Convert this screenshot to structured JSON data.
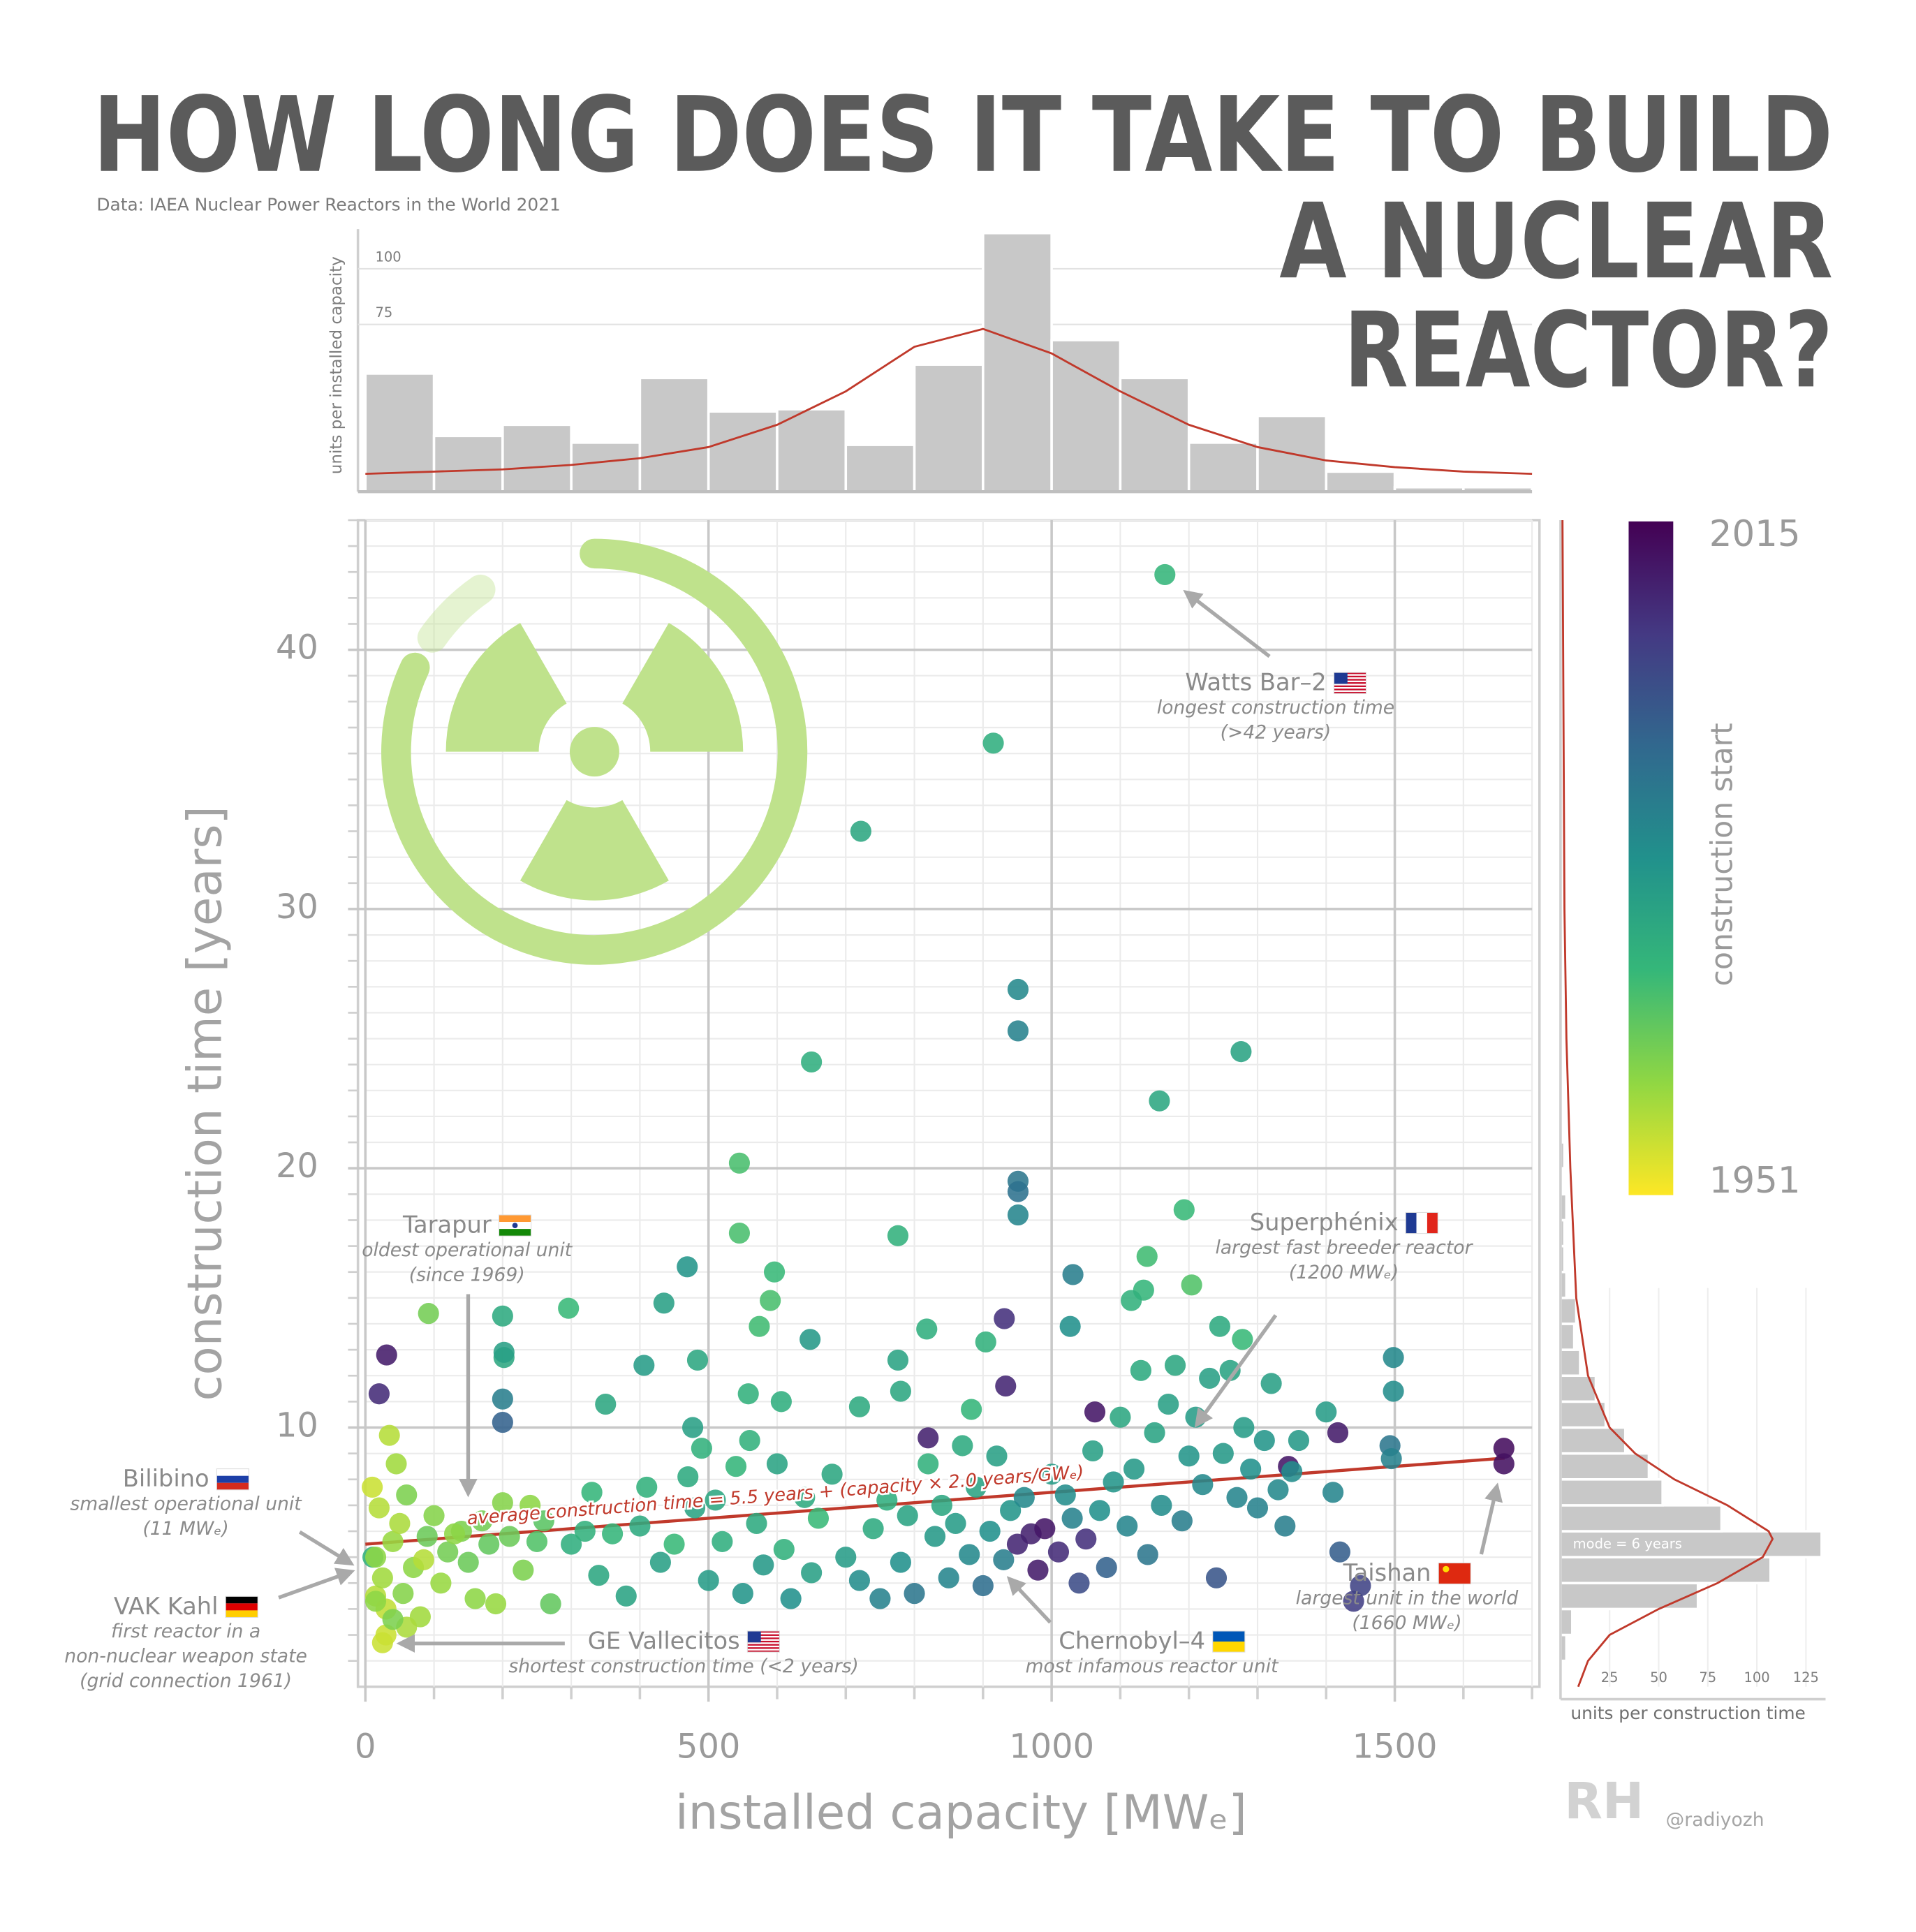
{
  "title": [
    "HOW LONG DOES IT TAKE TO BUILD",
    "A NUCLEAR",
    "REACTOR?"
  ],
  "source": "Data: IAEA Nuclear Power Reactors in the World 2021",
  "credit": "@radiyozh",
  "chart_data": [
    {
      "type": "scatter",
      "x_label": "installed capacity [MWₑ]",
      "y_label": "construction time [years]",
      "xlim": [
        0,
        1700
      ],
      "ylim": [
        0,
        45
      ],
      "xticks": [
        0,
        500,
        1000,
        1500
      ],
      "yticks": [
        10,
        20,
        30,
        40
      ],
      "xminorticks": [
        100,
        200,
        300,
        400,
        600,
        700,
        800,
        900,
        1100,
        1200,
        1300,
        1400,
        1600,
        1700
      ],
      "yminorticks": [
        1,
        2,
        3,
        4,
        5,
        6,
        7,
        8,
        9,
        11,
        12,
        13,
        14,
        15,
        16,
        17,
        18,
        19,
        21,
        22,
        23,
        24,
        25,
        26,
        27,
        28,
        29,
        31,
        32,
        33,
        34,
        35,
        36,
        37,
        38,
        39,
        41,
        42,
        43,
        44,
        45
      ],
      "grid": true,
      "series": [
        {
          "x": [
            1165,
            915,
            722,
            951,
            951,
            650,
            1276,
            1157,
            545,
            951,
            951,
            951,
            1193,
            545,
            776,
            469,
            596,
            1031,
            1139,
            1204,
            1134,
            1116,
            296,
            92,
            200,
            590,
            574,
            435,
            931,
            1027,
            818,
            648,
            904,
            1245,
            1278,
            31,
            202,
            202,
            484,
            406,
            776,
            1498,
            933,
            20,
            1498,
            200,
            558,
            606,
            883,
            1063,
            200,
            477,
            820,
            1417,
            1493,
            1495,
            1659,
            1659,
            1345,
            25,
            11,
            15,
            10,
            20,
            15,
            25,
            30,
            40,
            50,
            55,
            60,
            70,
            80,
            90,
            100,
            110,
            120,
            140,
            150,
            160,
            170,
            180,
            200,
            210,
            230,
            240,
            260,
            270,
            35,
            45,
            30,
            60,
            85,
            130,
            190,
            250,
            15,
            40,
            300,
            320,
            340,
            360,
            380,
            400,
            410,
            430,
            450,
            470,
            480,
            490,
            500,
            510,
            520,
            540,
            550,
            570,
            580,
            600,
            610,
            620,
            640,
            650,
            660,
            680,
            700,
            720,
            740,
            750,
            760,
            780,
            790,
            800,
            820,
            830,
            840,
            850,
            860,
            870,
            880,
            890,
            900,
            910,
            920,
            930,
            940,
            950,
            960,
            970,
            980,
            990,
            1000,
            1010,
            1020,
            1030,
            1040,
            1050,
            1060,
            1070,
            1080,
            1090,
            1100,
            1110,
            1120,
            1130,
            1140,
            1150,
            1160,
            1170,
            1180,
            1190,
            1200,
            1210,
            1220,
            1230,
            1240,
            1250,
            1260,
            1270,
            1280,
            1290,
            1300,
            1310,
            1320,
            1330,
            1340,
            1350,
            1360,
            1400,
            1410,
            1420,
            1440,
            1450,
            350,
            330,
            560,
            720,
            780
          ],
          "values": [
            42.9,
            36.4,
            33,
            26.9,
            25.3,
            24.1,
            24.5,
            22.6,
            20.2,
            19.5,
            19.1,
            18.2,
            18.4,
            17.5,
            17.4,
            16.2,
            16.0,
            15.9,
            16.6,
            15.5,
            15.3,
            14.9,
            14.6,
            14.4,
            14.3,
            14.9,
            13.9,
            14.8,
            14.2,
            13.9,
            13.8,
            13.4,
            13.3,
            13.9,
            13.4,
            12.8,
            12.7,
            12.9,
            12.6,
            12.4,
            12.6,
            12.7,
            11.6,
            11.3,
            11.4,
            11.1,
            11.3,
            11.0,
            10.7,
            10.6,
            10.2,
            10.0,
            9.6,
            9.8,
            9.3,
            8.8,
            9.2,
            8.6,
            8.5,
            1.7,
            5.0,
            3.5,
            7.7,
            6.9,
            5.0,
            4.2,
            3.0,
            5.6,
            6.3,
            3.6,
            7.4,
            4.6,
            2.7,
            5.8,
            6.6,
            4.0,
            5.2,
            6.0,
            4.8,
            3.4,
            6.4,
            5.5,
            7.1,
            5.8,
            4.5,
            7.0,
            6.4,
            3.2,
            9.7,
            8.6,
            2.0,
            2.3,
            4.9,
            5.9,
            3.2,
            5.6,
            3.3,
            2.6,
            5.5,
            6.0,
            4.3,
            5.9,
            3.5,
            6.2,
            7.7,
            4.8,
            5.5,
            8.1,
            6.9,
            9.2,
            4.1,
            7.2,
            5.6,
            8.5,
            3.6,
            6.3,
            4.7,
            8.6,
            5.3,
            3.4,
            7.3,
            4.4,
            6.5,
            8.2,
            5.0,
            4.1,
            6.1,
            3.4,
            7.2,
            4.8,
            6.6,
            3.6,
            8.6,
            5.8,
            7.0,
            4.2,
            6.3,
            9.3,
            5.1,
            7.7,
            3.9,
            6.0,
            8.9,
            4.9,
            6.8,
            5.5,
            7.3,
            5.9,
            4.5,
            6.1,
            8.2,
            5.2,
            7.4,
            6.5,
            4.0,
            5.7,
            9.1,
            6.8,
            4.6,
            7.9,
            10.4,
            6.2,
            8.4,
            12.2,
            5.1,
            9.8,
            7.0,
            10.9,
            12.4,
            6.4,
            8.9,
            10.4,
            7.8,
            11.9,
            4.2,
            9.0,
            12.2,
            7.3,
            10.0,
            8.4,
            6.9,
            9.5,
            11.7,
            7.6,
            6.2,
            8.3,
            9.5,
            10.6,
            7.5,
            5.2,
            3.3,
            3.9,
            10.9,
            7.5,
            9.5,
            10.8,
            11.4
          ],
          "start": [
            1973,
            1975,
            1977,
            1985,
            1987,
            1975,
            1978,
            1977,
            1970,
            1990,
            1991,
            1986,
            1972,
            1970,
            1974,
            1982,
            1972,
            1988,
            1971,
            1969,
            1973,
            1974,
            1972,
            1965,
            1976,
            1970,
            1971,
            1979,
            2006,
            1983,
            1975,
            1981,
            1974,
            1976,
            1972,
            2010,
            1977,
            1979,
            1977,
            1980,
            1978,
            1985,
            2008,
            2007,
            1984,
            1988,
            1974,
            1975,
            1973,
            2011,
            1995,
            1979,
            2009,
            2010,
            1990,
            1987,
            2013,
            2012,
            2011,
            1956,
            1974,
            1958,
            1956,
            1958,
            1962,
            1960,
            1957,
            1961,
            1959,
            1963,
            1964,
            1962,
            1960,
            1966,
            1963,
            1961,
            1965,
            1964,
            1966,
            1962,
            1965,
            1967,
            1963,
            1966,
            1964,
            1962,
            1968,
            1967,
            1958,
            1960,
            1956,
            1959,
            1958,
            1962,
            1961,
            1969,
            1962,
            1964,
            1975,
            1974,
            1977,
            1973,
            1978,
            1976,
            1974,
            1979,
            1972,
            1976,
            1978,
            1974,
            1980,
            1977,
            1975,
            1973,
            1982,
            1976,
            1981,
            1978,
            1974,
            1983,
            1976,
            1979,
            1972,
            1977,
            1980,
            1984,
            1976,
            1987,
            1975,
            1983,
            1978,
            1990,
            1974,
            1981,
            1977,
            1986,
            1980,
            1976,
            1985,
            1978,
            1992,
            1983,
            1979,
            1988,
            1982,
            2008,
            1985,
            2009,
            2010,
            2011,
            1980,
            2007,
            1984,
            1987,
            2000,
            2006,
            1979,
            1983,
            1995,
            1982,
            1977,
            1986,
            1981,
            1976,
            1990,
            1978,
            1984,
            1979,
            1977,
            1988,
            1982,
            1980,
            1985,
            1979,
            1998,
            1981,
            1978,
            1986,
            1980,
            1983,
            1987,
            1982,
            1979,
            1985,
            1988,
            1984,
            1981,
            1980,
            1986,
            1996,
            2003,
            2002,
            1977,
            1973,
            1974,
            1976,
            1977
          ]
        }
      ],
      "colorbar": {
        "label": "construction start",
        "lim": [
          1951,
          2015
        ],
        "ticks": [
          1951,
          2015
        ],
        "colors": [
          "#fde725",
          "#90d743",
          "#35b779",
          "#21918c",
          "#31688e",
          "#443983",
          "#440154"
        ]
      },
      "trend": {
        "label": "average construction time = 5.5 years + (capacity × 2.0 years/GWₑ)",
        "color": "#c0392b",
        "x": [
          0,
          1660
        ],
        "values": [
          5.5,
          8.82
        ]
      },
      "annotations": [
        {
          "name": "Watts Bar–2",
          "lines": [
            "longest construction time",
            "(>42 years)"
          ]
        },
        {
          "name": "Superphénix",
          "lines": [
            "largest fast breeder reactor",
            "(1200 MWₑ)"
          ]
        },
        {
          "name": "Tarapur",
          "lines": [
            "oldest operational unit",
            "(since 1969)"
          ]
        },
        {
          "name": "Bilibino",
          "lines": [
            "smallest operational unit",
            "(11 MWₑ)"
          ]
        },
        {
          "name": "VAK Kahl",
          "lines": [
            "first reactor in a",
            "non-nuclear weapon state",
            "(grid connection 1961)"
          ]
        },
        {
          "name": "GE Vallecitos",
          "lines": [
            "shortest construction time (<2 years)"
          ]
        },
        {
          "name": "Chernobyl–4",
          "lines": [
            "most infamous reactor unit"
          ]
        },
        {
          "name": "Taishan",
          "lines": [
            "largest unit in the world",
            "(1660 MWₑ)"
          ]
        }
      ]
    },
    {
      "type": "histogram",
      "orientation": "vertical",
      "y_label": "units per installed capacity",
      "color": "#c8c8c8",
      "bins": [
        0,
        100,
        200,
        300,
        400,
        500,
        600,
        700,
        800,
        900,
        1000,
        1100,
        1200,
        1300,
        1400,
        1500,
        1600,
        1700
      ],
      "values": [
        53,
        25,
        30,
        22,
        51,
        36,
        37,
        21,
        57,
        116,
        68,
        51,
        22,
        34,
        9,
        2,
        2
      ],
      "xlim": [
        0,
        1700
      ],
      "ylim": [
        0,
        120
      ],
      "yticks": [
        75,
        100
      ],
      "density": {
        "color": "#c0392b",
        "x": [
          0,
          100,
          200,
          300,
          400,
          500,
          600,
          700,
          800,
          900,
          1000,
          1100,
          1200,
          1300,
          1400,
          1500,
          1600,
          1700
        ],
        "values": [
          8,
          9,
          10,
          12,
          15,
          20,
          30,
          45,
          65,
          73,
          62,
          45,
          30,
          20,
          14,
          11,
          9,
          8
        ]
      }
    },
    {
      "type": "histogram",
      "orientation": "horizontal",
      "x_label": "units per construction time",
      "annotation": "mode = 6 years",
      "color": "#c8c8c8",
      "bins": [
        1,
        2,
        3,
        4,
        5,
        6,
        7,
        8,
        9,
        10,
        11,
        12,
        13,
        14,
        15,
        16,
        17,
        18,
        19,
        20,
        21
      ],
      "values": [
        3,
        6,
        70,
        107,
        133,
        82,
        52,
        45,
        33,
        23,
        18,
        10,
        7,
        8,
        3,
        2,
        2,
        3,
        1,
        2
      ],
      "xlim": [
        0,
        135
      ],
      "ylim": [
        0,
        45
      ],
      "xticks": [
        25,
        50,
        75,
        100,
        125
      ],
      "density": {
        "color": "#c0392b",
        "y": [
          0,
          1,
          2,
          3,
          4,
          5,
          5.7,
          6,
          7,
          8,
          9,
          10,
          12,
          15,
          20,
          25,
          30,
          45
        ],
        "values": [
          9,
          14,
          25,
          50,
          80,
          103,
          108,
          106,
          85,
          58,
          38,
          25,
          14,
          8,
          5,
          3,
          2,
          1
        ]
      }
    }
  ]
}
